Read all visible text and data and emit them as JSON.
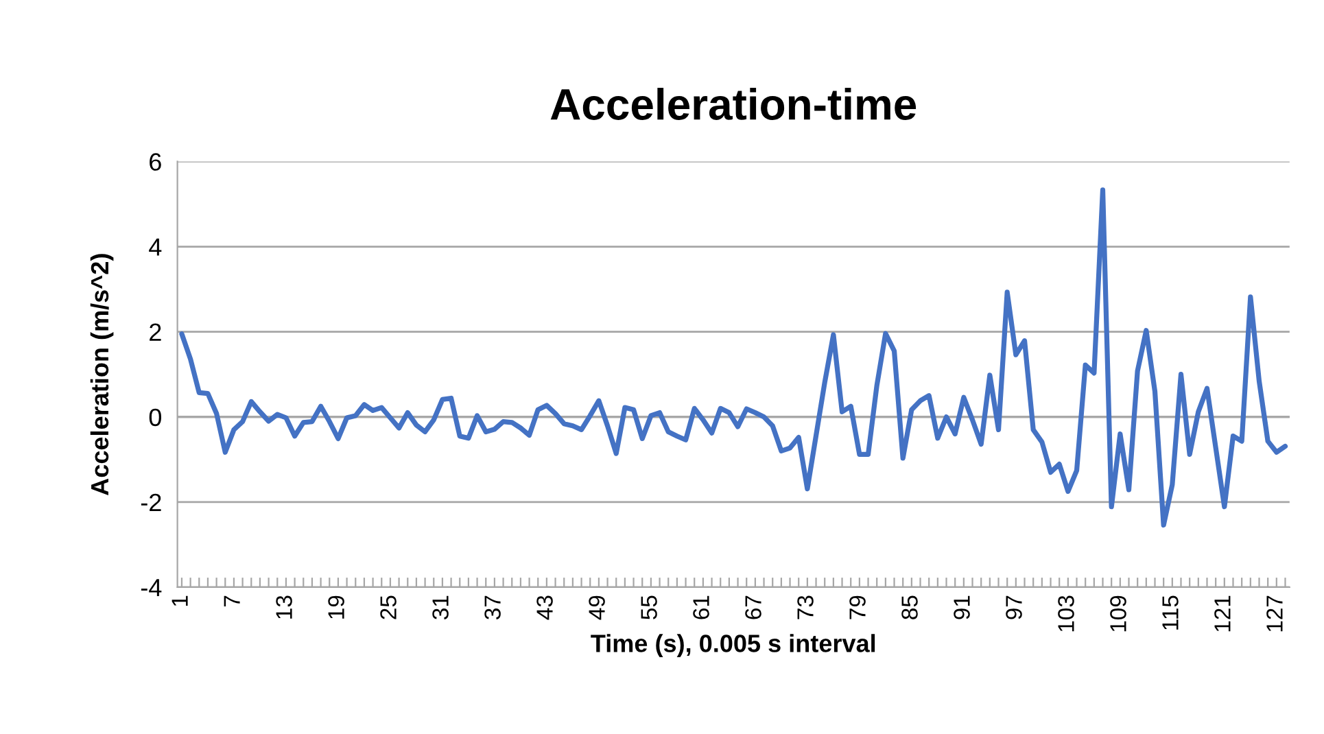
{
  "chart_data": {
    "type": "line",
    "title": "Acceleration-time",
    "xlabel": "Time (s), 0.005 s interval",
    "ylabel": "Acceleration (m/s^2)",
    "categories": [
      "1",
      null,
      null,
      null,
      null,
      null,
      "7",
      null,
      null,
      null,
      null,
      null,
      "13",
      null,
      null,
      null,
      null,
      null,
      "19",
      null,
      null,
      null,
      null,
      null,
      "25",
      null,
      null,
      null,
      null,
      null,
      "31",
      null,
      null,
      null,
      null,
      null,
      "37",
      null,
      null,
      null,
      null,
      null,
      "43",
      null,
      null,
      null,
      null,
      null,
      "49",
      null,
      null,
      null,
      null,
      null,
      "55",
      null,
      null,
      null,
      null,
      null,
      "61",
      null,
      null,
      null,
      null,
      null,
      "67",
      null,
      null,
      null,
      null,
      null,
      "73",
      null,
      null,
      null,
      null,
      null,
      "79",
      null,
      null,
      null,
      null,
      null,
      "85",
      null,
      null,
      null,
      null,
      null,
      "91",
      null,
      null,
      null,
      null,
      null,
      "97",
      null,
      null,
      null,
      null,
      null,
      "103",
      null,
      null,
      null,
      null,
      null,
      "109",
      null,
      null,
      null,
      null,
      null,
      "115",
      null,
      null,
      null,
      null,
      null,
      "121",
      null,
      null,
      null,
      null,
      null,
      "127",
      null
    ],
    "series": [
      {
        "color": "#4472c4",
        "values": [
          1.95,
          1.36,
          0.57,
          0.55,
          0.08,
          -0.83,
          -0.3,
          -0.11,
          0.36,
          0.12,
          -0.1,
          0.06,
          -0.02,
          -0.45,
          -0.13,
          -0.11,
          0.25,
          -0.11,
          -0.51,
          -0.02,
          0.03,
          0.29,
          0.15,
          0.22,
          -0.02,
          -0.26,
          0.1,
          -0.19,
          -0.35,
          -0.07,
          0.41,
          0.44,
          -0.45,
          -0.5,
          0.03,
          -0.35,
          -0.29,
          -0.11,
          -0.13,
          -0.26,
          -0.43,
          0.17,
          0.27,
          0.08,
          -0.16,
          -0.21,
          -0.3,
          0.03,
          0.38,
          -0.21,
          -0.86,
          0.22,
          0.17,
          -0.51,
          0.03,
          0.1,
          -0.35,
          -0.45,
          -0.54,
          0.2,
          -0.07,
          -0.38,
          0.2,
          0.1,
          -0.23,
          0.19,
          0.1,
          0,
          -0.21,
          -0.8,
          -0.73,
          -0.48,
          -1.69,
          -0.44,
          0.81,
          1.93,
          0.12,
          0.25,
          -0.88,
          -0.88,
          0.74,
          1.96,
          1.55,
          -0.97,
          0.17,
          0.38,
          0.5,
          -0.5,
          0,
          -0.4,
          0.46,
          -0.07,
          -0.64,
          0.98,
          -0.3,
          2.93,
          1.46,
          1.79,
          -0.3,
          -0.59,
          -1.3,
          -1.11,
          -1.75,
          -1.26,
          1.22,
          1.03,
          5.33,
          -2.11,
          -0.4,
          -1.71,
          1.08,
          2.03,
          0.6,
          -2.54,
          -1.59,
          1.0,
          -0.88,
          0.12,
          0.67,
          -0.72,
          -2.11,
          -0.45,
          -0.57,
          2.82,
          0.84,
          -0.57,
          -0.83,
          -0.69
        ]
      }
    ],
    "ylim": [
      -4,
      6
    ],
    "yticks": [
      {
        "value": -4,
        "label": "-4"
      },
      {
        "value": -2,
        "label": "-2"
      },
      0,
      2,
      4,
      6
    ],
    "grid": "y",
    "legend": false,
    "marker": "none",
    "line_style": "solid"
  }
}
